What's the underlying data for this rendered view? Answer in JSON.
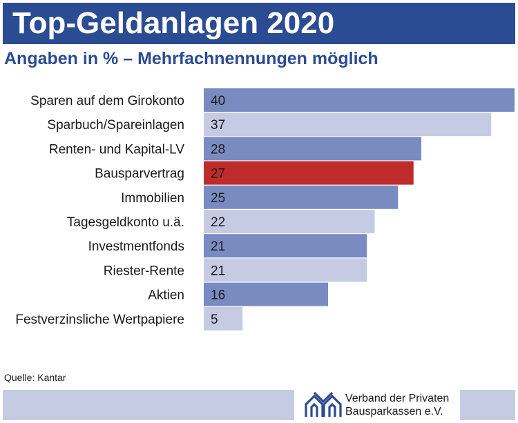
{
  "header": {
    "title": "Top-Geldanlagen 2020",
    "subtitle": "Angaben in % – Mehrfachnennungen möglich"
  },
  "colors": {
    "dark_bar": "#7a8bc1",
    "light_bar": "#c6cbe4",
    "highlight_bar": "#bf2b2b",
    "title_background": "#2b4b93"
  },
  "chart_data": {
    "type": "bar",
    "orientation": "horizontal",
    "title": "Top-Geldanlagen 2020",
    "subtitle": "Angaben in % – Mehrfachnennungen möglich",
    "xlabel": "",
    "ylabel": "",
    "xlim": [
      0,
      40
    ],
    "grid": false,
    "legend": "none",
    "categories": [
      "Sparen auf dem Girokonto",
      "Sparbuch/Spareinlagen",
      "Renten- und Kapital-LV",
      "Bausparvertrag",
      "Immobilien",
      "Tagesgeldkonto u.ä.",
      "Investmentfonds",
      "Riester-Rente",
      "Aktien",
      "Festverzinsliche Wertpapiere"
    ],
    "values": [
      40,
      37,
      28,
      27,
      25,
      22,
      21,
      21,
      16,
      5
    ],
    "bar_styles": [
      "dark",
      "light",
      "dark",
      "highlight",
      "dark",
      "light",
      "dark",
      "light",
      "dark",
      "light"
    ]
  },
  "footer": {
    "source": "Quelle: Kantar",
    "brand_line1": "Verband der Privaten",
    "brand_line2": "Bausparkassen e.V.",
    "logo_icon": "houses-logo-icon"
  }
}
